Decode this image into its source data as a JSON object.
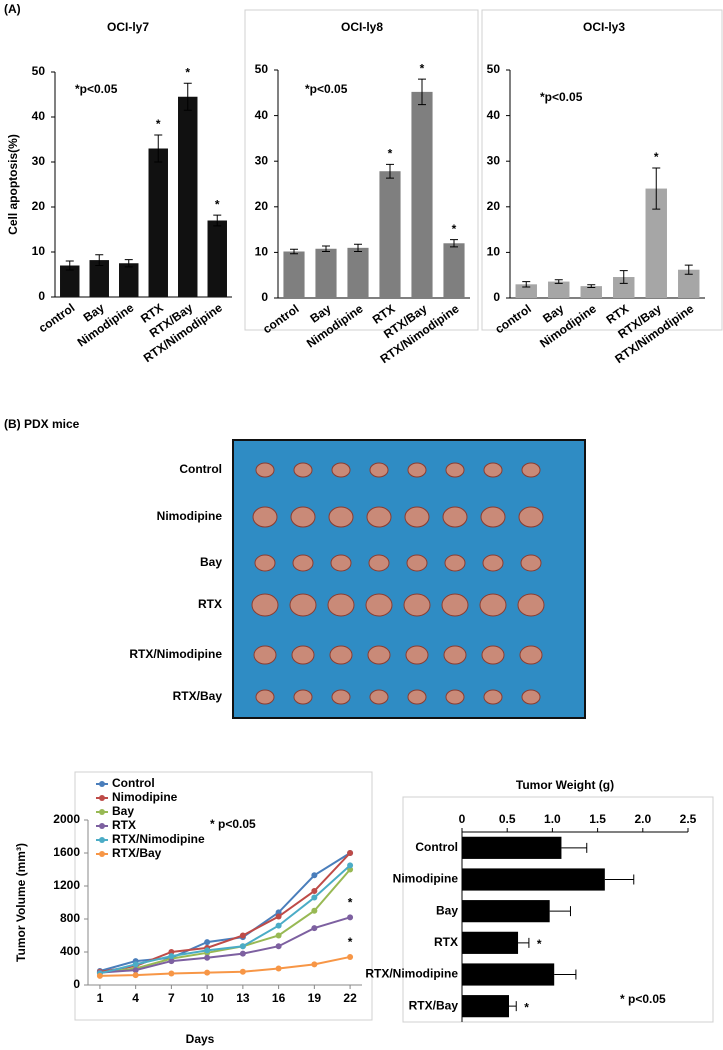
{
  "panel_labels": [
    "(A)",
    "(B) PDX mice"
  ],
  "photo": {
    "row_labels": [
      "Control",
      "Nimodipine",
      "Bay",
      "RTX",
      "RTX/Nimodipine",
      "RTX/Bay"
    ]
  },
  "chart_data": [
    {
      "type": "bar",
      "title": "OCI-ly7",
      "y_label": "Cell apoptosis(%)",
      "annotation": "*p<0.05",
      "categories": [
        "control",
        "Bay",
        "Nimodipine",
        "RTX",
        "RTX/Bay",
        "RTX/Nimodipine"
      ],
      "values": [
        7,
        8.2,
        7.5,
        33,
        44.5,
        17
      ],
      "errors": [
        1,
        1.2,
        0.8,
        3,
        3,
        1.2
      ],
      "significance_marker": "*",
      "significant": [
        false,
        false,
        false,
        true,
        true,
        true
      ],
      "color": "#111111",
      "ylim": [
        0,
        50
      ],
      "yticks": [
        0,
        10,
        20,
        30,
        40,
        50
      ]
    },
    {
      "type": "bar",
      "title": "OCI-ly8",
      "annotation": "*p<0.05",
      "categories": [
        "control",
        "Bay",
        "Nimodipine",
        "RTX",
        "RTX/Bay",
        "RTX/Nimodipine"
      ],
      "values": [
        10.2,
        10.8,
        11,
        27.8,
        45.2,
        12
      ],
      "errors": [
        0.5,
        0.6,
        0.8,
        1.5,
        2.8,
        0.8
      ],
      "significance_marker": "*",
      "significant": [
        false,
        false,
        false,
        true,
        true,
        true
      ],
      "color": "#7f7f7f",
      "ylim": [
        0,
        50
      ],
      "yticks": [
        0,
        10,
        20,
        30,
        40,
        50
      ]
    },
    {
      "type": "bar",
      "title": "OCI-ly3",
      "annotation": "*p<0.05",
      "categories": [
        "control",
        "Bay",
        "Nimodipine",
        "RTX",
        "RTX/Bay",
        "RTX/Nimodipine"
      ],
      "values": [
        3,
        3.6,
        2.6,
        4.6,
        24,
        6.2
      ],
      "errors": [
        0.6,
        0.4,
        0.3,
        1.4,
        4.5,
        1
      ],
      "significance_marker": "*",
      "significant": [
        false,
        false,
        false,
        false,
        true,
        false
      ],
      "color": "#a6a6a6",
      "ylim": [
        0,
        50
      ],
      "yticks": [
        0,
        10,
        20,
        30,
        40,
        50
      ]
    },
    {
      "type": "line",
      "y_label": "Tumor Volume (mm³)",
      "x_label": "Days",
      "annotation": "* p<0.05",
      "x": [
        1,
        4,
        7,
        10,
        13,
        16,
        19,
        22
      ],
      "xlim": [
        0,
        23
      ],
      "xticks": [
        1,
        4,
        7,
        10,
        13,
        16,
        19,
        22
      ],
      "ylim": [
        0,
        2000
      ],
      "yticks": [
        0,
        400,
        800,
        1200,
        1600,
        2000
      ],
      "significance_marker": "*",
      "series": [
        {
          "name": "Control",
          "color": "#4a7ebb",
          "values": [
            170,
            290,
            330,
            520,
            580,
            880,
            1330,
            1600
          ],
          "significant": false
        },
        {
          "name": "Nimodipine",
          "color": "#be4b48",
          "values": [
            160,
            230,
            400,
            450,
            600,
            830,
            1140,
            1600
          ],
          "significant": false
        },
        {
          "name": "Bay",
          "color": "#98b954",
          "values": [
            150,
            200,
            320,
            390,
            470,
            600,
            900,
            1400
          ],
          "significant": false
        },
        {
          "name": "RTX",
          "color": "#7d60a0",
          "values": [
            150,
            180,
            290,
            330,
            380,
            470,
            690,
            820
          ],
          "significant": true
        },
        {
          "name": "RTX/Nimodipine",
          "color": "#4bacc6",
          "values": [
            140,
            250,
            350,
            420,
            470,
            720,
            1060,
            1450
          ],
          "significant": false
        },
        {
          "name": "RTX/Bay",
          "color": "#f79646",
          "values": [
            110,
            120,
            140,
            150,
            160,
            200,
            250,
            340
          ],
          "significant": true
        }
      ]
    },
    {
      "type": "hbar",
      "title": "Tumor Weight (g)",
      "annotation": "* p<0.05",
      "categories": [
        "Control",
        "Nimodipine",
        "Bay",
        "RTX",
        "RTX/Nimodipine",
        "RTX/Bay"
      ],
      "values": [
        1.1,
        1.58,
        0.97,
        0.62,
        1.02,
        0.52
      ],
      "errors": [
        0.28,
        0.32,
        0.23,
        0.12,
        0.24,
        0.08
      ],
      "significance_marker": "*",
      "significant": [
        false,
        false,
        false,
        true,
        false,
        true
      ],
      "color": "#000000",
      "xlim": [
        0,
        2.5
      ],
      "xticks": [
        0,
        0.5,
        {
          "value": 1,
          "label": "1.0"
        },
        1.5,
        {
          "value": 2,
          "label": "2.0"
        },
        2.5
      ]
    }
  ]
}
